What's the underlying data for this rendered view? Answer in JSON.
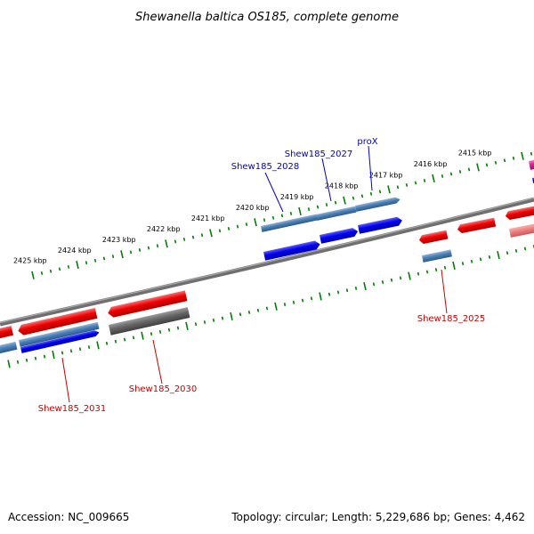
{
  "title": "Shewanella baltica OS185, complete genome",
  "footer": {
    "accession": "Accession: NC_009665",
    "topology": "Topology: circular; Length: 5,229,686 bp; Genes: 4,462"
  },
  "ticks": {
    "upper": [
      "2425 kbp",
      "2424 kbp",
      "2423 kbp",
      "2422 kbp",
      "2421 kbp",
      "2420 kbp",
      "2419 kbp",
      "2418 kbp",
      "2417 kbp",
      "2416 kbp",
      "2415 kbp"
    ]
  },
  "gene_labels": {
    "upper": [
      "Shew185_2028",
      "Shew185_2027",
      "proX"
    ],
    "lower": [
      "Shew185_2031",
      "Shew185_2030",
      "Shew185_2025"
    ]
  },
  "colors": {
    "backbone": "#777777",
    "tick": "#008000",
    "gene_red": "#ee0000",
    "gene_blue": "#0000ee",
    "gene_steel": "#4a7fb5",
    "gene_gray": "#666666",
    "gene_pink": "#f08080",
    "gene_magenta": "#e0209a",
    "label_blue": "#0000cc",
    "label_red": "#cc0000"
  }
}
